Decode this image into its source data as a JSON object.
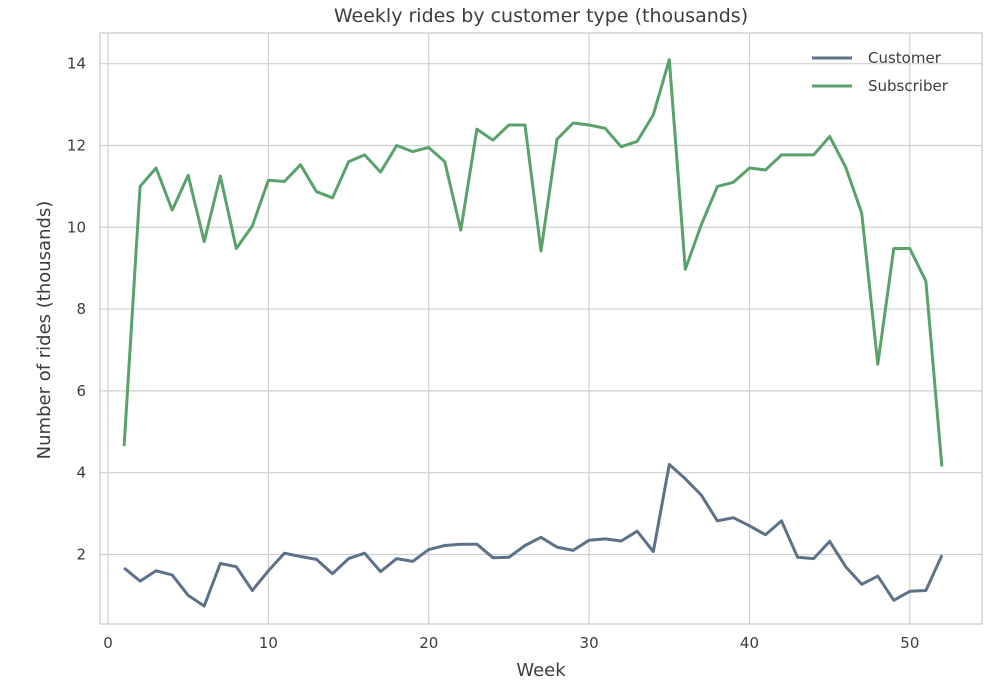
{
  "chart_data": {
    "type": "line",
    "title": "Weekly rides by customer type (thousands)",
    "xlabel": "Week",
    "ylabel": "Number of rides (thousands)",
    "xlim": [
      -0.5,
      54.5
    ],
    "ylim": [
      0.3,
      14.75
    ],
    "xticks": [
      0,
      10,
      20,
      30,
      40,
      50
    ],
    "yticks": [
      2,
      4,
      6,
      8,
      10,
      12,
      14
    ],
    "grid": true,
    "legend": "top-right",
    "x": [
      1,
      2,
      3,
      4,
      5,
      6,
      7,
      8,
      9,
      10,
      11,
      12,
      13,
      14,
      15,
      16,
      17,
      18,
      19,
      20,
      21,
      22,
      23,
      24,
      25,
      26,
      27,
      28,
      29,
      30,
      31,
      32,
      33,
      34,
      35,
      36,
      37,
      38,
      39,
      40,
      41,
      42,
      43,
      44,
      45,
      46,
      47,
      48,
      49,
      50,
      51,
      52
    ],
    "series": [
      {
        "name": "Customer",
        "color": "#5d7188",
        "values": [
          1.67,
          1.35,
          1.6,
          1.5,
          1.0,
          0.74,
          1.78,
          1.7,
          1.12,
          1.6,
          2.03,
          1.95,
          1.88,
          1.53,
          1.9,
          2.03,
          1.58,
          1.9,
          1.83,
          2.12,
          2.22,
          2.25,
          2.25,
          1.92,
          1.93,
          2.22,
          2.42,
          2.18,
          2.1,
          2.35,
          2.38,
          2.33,
          2.57,
          2.07,
          4.2,
          3.85,
          3.45,
          2.82,
          2.9,
          2.7,
          2.48,
          2.82,
          1.93,
          1.9,
          2.32,
          1.7,
          1.27,
          1.47,
          0.88,
          1.1,
          1.12,
          1.98
        ]
      },
      {
        "name": "Subscriber",
        "color": "#5aa26c",
        "values": [
          4.65,
          11.0,
          11.45,
          10.42,
          11.27,
          9.65,
          11.25,
          9.48,
          10.03,
          11.15,
          11.12,
          11.53,
          10.87,
          10.72,
          11.6,
          11.77,
          11.35,
          12.0,
          11.85,
          11.95,
          11.6,
          9.93,
          12.4,
          12.13,
          12.5,
          12.5,
          9.42,
          12.15,
          12.55,
          12.5,
          12.42,
          11.97,
          12.1,
          12.75,
          14.1,
          8.97,
          10.07,
          11.0,
          11.1,
          11.45,
          11.4,
          11.77,
          11.77,
          11.77,
          12.22,
          11.47,
          10.35,
          6.65,
          9.48,
          9.48,
          8.68,
          4.15
        ]
      }
    ]
  }
}
